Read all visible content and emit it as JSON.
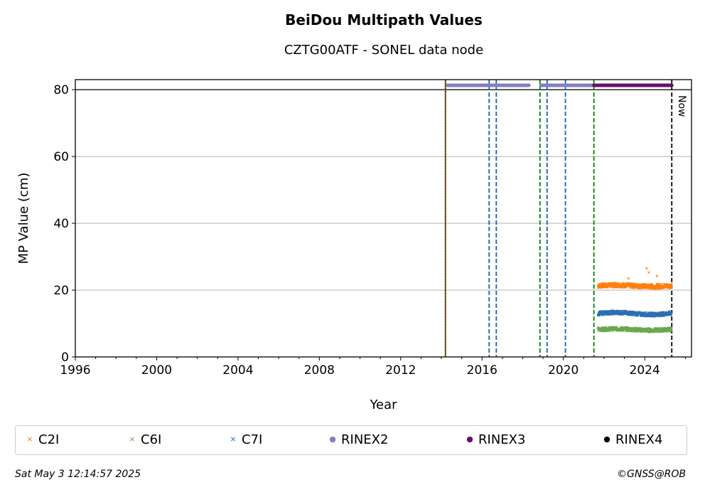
{
  "chart_data": {
    "type": "scatter",
    "title": "BeiDou Multipath Values",
    "subtitle": "CZTG00ATF - SONEL data node",
    "xlabel": "Year",
    "ylabel": "MP Value (cm)",
    "xlim": [
      1996,
      2026.3
    ],
    "ylim": [
      0,
      83
    ],
    "x_ticks": [
      1996,
      2000,
      2004,
      2008,
      2012,
      2016,
      2020,
      2024
    ],
    "y_ticks": [
      0,
      20,
      40,
      60,
      80
    ],
    "grid": "horizontal",
    "reference_line_y": 80,
    "series": [
      {
        "name": "C2I",
        "color": "#ff7f0e",
        "marker": "x",
        "x_start": 2021.7,
        "x_end": 2025.33,
        "base": 21.3,
        "trend": 0.2,
        "jitter": 0.7
      },
      {
        "name": "C6I",
        "color": "#6aa84f",
        "marker": "x",
        "x_start": 2021.7,
        "x_end": 2025.33,
        "base": 8.2,
        "trend": 0.2,
        "jitter": 0.6
      },
      {
        "name": "C7I",
        "color": "#2b6fb5",
        "marker": "x",
        "x_start": 2021.7,
        "x_end": 2025.33,
        "base": 13.0,
        "trend": 0.3,
        "jitter": 0.6
      }
    ],
    "rinex_segments": [
      {
        "name": "RINEX2",
        "color": "#8080c0",
        "y": 81.3,
        "from": 2014.3,
        "to": 2018.3
      },
      {
        "name": "RINEX2",
        "color": "#8080c0",
        "y": 81.3,
        "from": 2018.9,
        "to": 2021.5
      },
      {
        "name": "RINEX3",
        "color": "#6a0d6a",
        "y": 81.3,
        "from": 2021.5,
        "to": 2025.33
      }
    ],
    "vertical_lines": [
      {
        "x": 2014.2,
        "color": "#008000",
        "style": "solid"
      },
      {
        "x": 2014.2,
        "color": "#cc0000",
        "style": "dotted"
      },
      {
        "x": 2016.35,
        "color": "#1a5fa8",
        "style": "dashed"
      },
      {
        "x": 2016.7,
        "color": "#1a5fa8",
        "style": "dashed"
      },
      {
        "x": 2018.85,
        "color": "#008000",
        "style": "dashed"
      },
      {
        "x": 2019.2,
        "color": "#1a5fa8",
        "style": "dashed"
      },
      {
        "x": 2020.1,
        "color": "#1a5fa8",
        "style": "dashed"
      },
      {
        "x": 2021.5,
        "color": "#008000",
        "style": "dashed"
      },
      {
        "x": 2025.33,
        "color": "#000000",
        "style": "dashed"
      }
    ],
    "now_label": "Now",
    "now_x": 2025.33
  },
  "legend": [
    {
      "label": "C2I",
      "color": "#ff7f0e",
      "symbol": "×"
    },
    {
      "label": "C6I",
      "color": "#6aa84f",
      "symbol": "×"
    },
    {
      "label": "C7I",
      "color": "#2b6fb5",
      "symbol": "×"
    },
    {
      "label": "RINEX2",
      "color": "#8080c0",
      "symbol": "●"
    },
    {
      "label": "RINEX3",
      "color": "#6a0d6a",
      "symbol": "●"
    },
    {
      "label": "RINEX4",
      "color": "#000000",
      "symbol": "●"
    }
  ],
  "footer": {
    "timestamp": "Sat May  3 12:14:57 2025",
    "copyright": "©GNSS@ROB"
  }
}
